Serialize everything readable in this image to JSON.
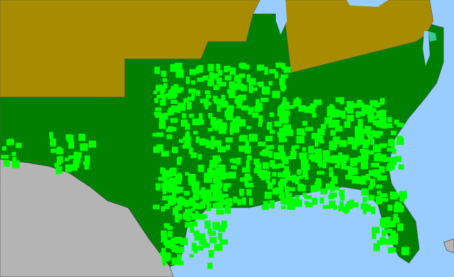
{
  "map": {
    "type": "county distribution map",
    "colors": {
      "water": "#99ccff",
      "foreign_land": "#b4b4b4",
      "absent_state": "#a88c00",
      "present_state": "#007f00",
      "present_county": "#00ff00",
      "other_county": "#33cc99",
      "borders": "#555555"
    },
    "regions": [
      {
        "name": "northern-states",
        "status": "absent"
      },
      {
        "name": "southern-states",
        "status": "present"
      },
      {
        "name": "mexico",
        "status": "foreign"
      }
    ]
  }
}
